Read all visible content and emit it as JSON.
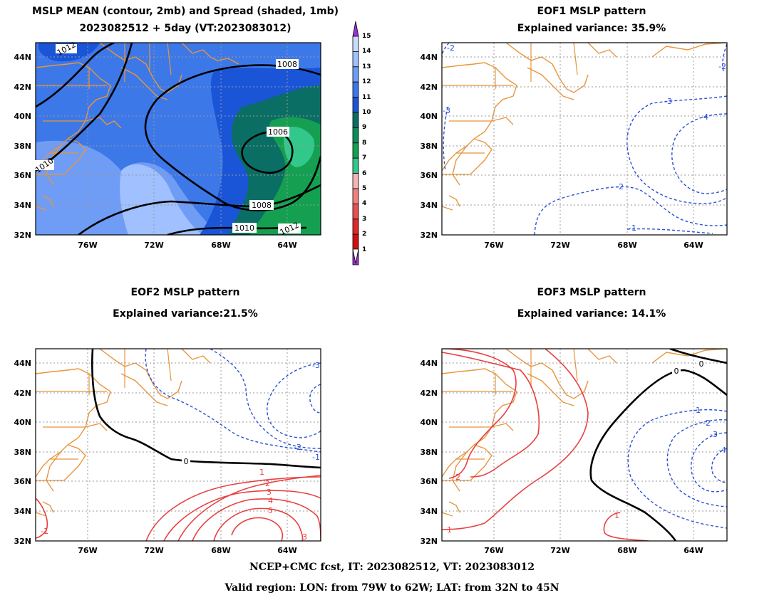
{
  "panels": [
    {
      "title1": "MSLP MEAN (contour, 2mb) and Spread (shaded, 1mb)",
      "title2": "2023082512 + 5day (VT:2023083012)"
    },
    {
      "title1": "EOF1 MSLP pattern",
      "title2": "Explained variance: 35.9%"
    },
    {
      "title1": "EOF2 MSLP pattern",
      "title2": "Explained variance:21.5%"
    },
    {
      "title1": "EOF3 MSLP pattern",
      "title2": "Explained variance: 14.1%"
    }
  ],
  "footer": {
    "line1": "NCEP+CMC fcst, IT: 2023082512, VT: 2023083012",
    "line2": "Valid region: LON: from 79W to 62W; LAT: from 32N to 45N"
  },
  "chart_data": [
    {
      "type": "contour",
      "x_ticks": [
        "76W",
        "72W",
        "68W",
        "64W"
      ],
      "y_ticks": [
        "32N",
        "34N",
        "36N",
        "38N",
        "40N",
        "42N",
        "44N"
      ],
      "xlim": [
        "79W",
        "62W"
      ],
      "ylim": [
        "32N",
        "45N"
      ],
      "grid": true,
      "contour_labels": [
        "1012",
        "1008",
        "1006",
        "1010",
        "1008",
        "1010",
        "1012"
      ],
      "colorbar": {
        "labels": [
          "1",
          "2",
          "3",
          "4",
          "5",
          "6",
          "7",
          "8",
          "9",
          "10",
          "11",
          "12",
          "13",
          "14",
          "15"
        ],
        "colors": [
          "#c8dcff",
          "#a0c0ff",
          "#6f9cf5",
          "#3c78e8",
          "#1a55d8",
          "#0a6e64",
          "#0d8c5a",
          "#14a050",
          "#32c88c",
          "#f5b4b4",
          "#f08080",
          "#e65050",
          "#e02828",
          "#d01010",
          "#9b30d0"
        ]
      }
    },
    {
      "type": "contour",
      "x_ticks": [
        "76W",
        "72W",
        "68W",
        "64W"
      ],
      "y_ticks": [
        "32N",
        "34N",
        "36N",
        "38N",
        "40N",
        "42N",
        "44N"
      ],
      "grid": true,
      "contour_labels": [
        "-2",
        "-2",
        "-3",
        "-3",
        "-4",
        "-2",
        "-1"
      ]
    },
    {
      "type": "contour",
      "x_ticks": [
        "76W",
        "72W",
        "68W",
        "64W"
      ],
      "y_ticks": [
        "32N",
        "34N",
        "36N",
        "38N",
        "40N",
        "42N",
        "44N"
      ],
      "grid": true,
      "contour_labels": [
        "-3",
        "-2",
        "-1",
        "0",
        "1",
        "2",
        "3",
        "4",
        "5",
        "3",
        "-1"
      ]
    },
    {
      "type": "contour",
      "x_ticks": [
        "76W",
        "72W",
        "68W",
        "64W"
      ],
      "y_ticks": [
        "32N",
        "34N",
        "36N",
        "38N",
        "40N",
        "42N",
        "44N"
      ],
      "grid": true,
      "contour_labels": [
        "0",
        "0",
        "-1",
        "-2",
        "-3",
        "-4",
        "2",
        "1",
        "1"
      ]
    }
  ]
}
